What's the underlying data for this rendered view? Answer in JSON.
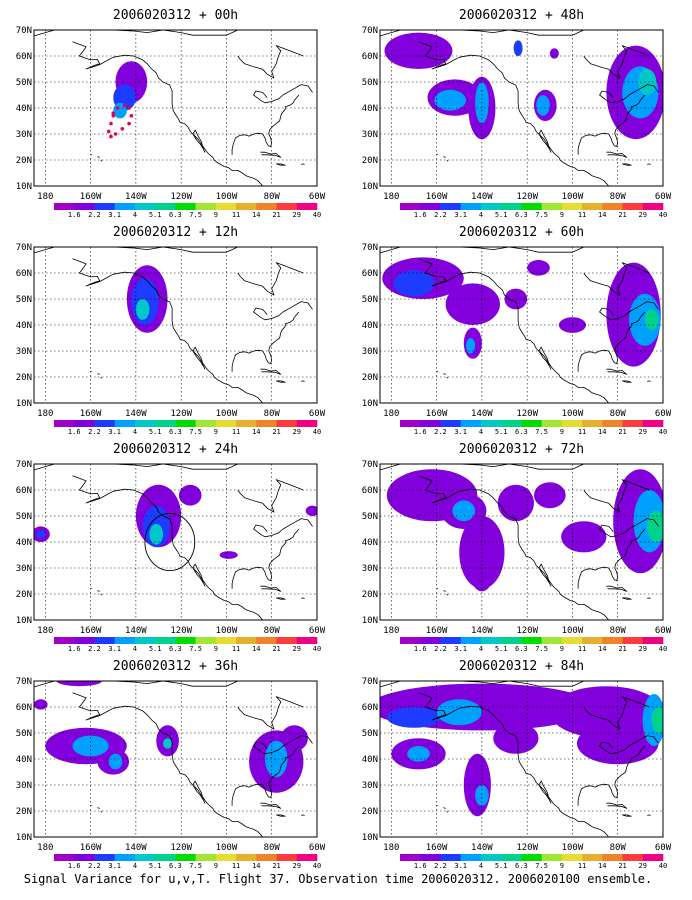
{
  "figure": {
    "caption": "Signal Variance for u,v,T. Flight 37. Observation time 2006020312. 2006020100 ensemble.",
    "map": {
      "lat_ticks": [
        10,
        20,
        30,
        40,
        50,
        60,
        70
      ],
      "lat_labels": [
        "10N",
        "20N",
        "30N",
        "40N",
        "50N",
        "60N",
        "70N"
      ],
      "lon_ticks": [
        180,
        160,
        140,
        120,
        100,
        80,
        60
      ],
      "lon_labels": [
        "180",
        "160W",
        "140W",
        "120W",
        "100W",
        "80W",
        "60W"
      ],
      "lon_range_west": [
        185,
        60
      ],
      "lat_range": [
        10,
        70
      ],
      "grid": "dotted"
    },
    "colorbar": {
      "labels": [
        "1.6",
        "2.2",
        "3.1",
        "4",
        "5.1",
        "6.3",
        "7.5",
        "9",
        "11",
        "14",
        "21",
        "29",
        "40"
      ],
      "colors": [
        "#a000c8",
        "#8200dc",
        "#1e3cff",
        "#00a0ff",
        "#00c8c8",
        "#00d28c",
        "#00dc00",
        "#a0e632",
        "#e6dc32",
        "#e6af2d",
        "#f08228",
        "#fa3c3c",
        "#f00082"
      ]
    },
    "panels": [
      {
        "title": "2006020312 + 00h",
        "blobs": [
          {
            "lon": 142,
            "lat": 50,
            "rlon": 7,
            "rlat": 8,
            "level": 1
          },
          {
            "lon": 145,
            "lat": 44,
            "rlon": 5,
            "rlat": 5,
            "level": 2
          },
          {
            "lon": 147,
            "lat": 39,
            "rlon": 3,
            "rlat": 3,
            "level": 3
          }
        ],
        "flight_track": [
          [
            150,
            38
          ],
          [
            148,
            40
          ],
          [
            145,
            41
          ],
          [
            143,
            40
          ],
          [
            142,
            37
          ],
          [
            143,
            34
          ],
          [
            146,
            32
          ],
          [
            149,
            30
          ],
          [
            151,
            29
          ],
          [
            152,
            31
          ],
          [
            151,
            34
          ],
          [
            150,
            37
          ]
        ]
      },
      {
        "title": "2006020312 + 48h",
        "blobs": [
          {
            "lon": 168,
            "lat": 62,
            "rlon": 15,
            "rlat": 7,
            "level": 1
          },
          {
            "lon": 152,
            "lat": 44,
            "rlon": 12,
            "rlat": 7,
            "level": 1
          },
          {
            "lon": 140,
            "lat": 40,
            "rlon": 6,
            "rlat": 12,
            "level": 1
          },
          {
            "lon": 140,
            "lat": 42,
            "rlon": 3,
            "rlat": 8,
            "level": 3
          },
          {
            "lon": 154,
            "lat": 43,
            "rlon": 7,
            "rlat": 4,
            "level": 3
          },
          {
            "lon": 112,
            "lat": 41,
            "rlon": 5,
            "rlat": 6,
            "level": 1
          },
          {
            "lon": 113,
            "lat": 41,
            "rlon": 3,
            "rlat": 4,
            "level": 3
          },
          {
            "lon": 124,
            "lat": 63,
            "rlon": 2,
            "rlat": 3,
            "level": 2
          },
          {
            "lon": 108,
            "lat": 61,
            "rlon": 2,
            "rlat": 2,
            "level": 1
          },
          {
            "lon": 72,
            "lat": 46,
            "rlon": 13,
            "rlat": 18,
            "level": 1
          },
          {
            "lon": 70,
            "lat": 46,
            "rlon": 8,
            "rlat": 10,
            "level": 3
          },
          {
            "lon": 67,
            "lat": 50,
            "rlon": 4,
            "rlat": 5,
            "level": 4
          }
        ]
      },
      {
        "title": "2006020312 + 12h",
        "blobs": [
          {
            "lon": 135,
            "lat": 50,
            "rlon": 9,
            "rlat": 13,
            "level": 1
          },
          {
            "lon": 136,
            "lat": 49,
            "rlon": 6,
            "rlat": 9,
            "level": 2
          },
          {
            "lon": 137,
            "lat": 46,
            "rlon": 3,
            "rlat": 4,
            "level": 4
          }
        ]
      },
      {
        "title": "2006020312 + 60h",
        "blobs": [
          {
            "lon": 166,
            "lat": 58,
            "rlon": 18,
            "rlat": 8,
            "level": 1
          },
          {
            "lon": 170,
            "lat": 56,
            "rlon": 9,
            "rlat": 5,
            "level": 2
          },
          {
            "lon": 144,
            "lat": 48,
            "rlon": 12,
            "rlat": 8,
            "level": 1
          },
          {
            "lon": 144,
            "lat": 33,
            "rlon": 4,
            "rlat": 6,
            "level": 1
          },
          {
            "lon": 145,
            "lat": 32,
            "rlon": 2,
            "rlat": 3,
            "level": 3
          },
          {
            "lon": 125,
            "lat": 50,
            "rlon": 5,
            "rlat": 4,
            "level": 1
          },
          {
            "lon": 115,
            "lat": 62,
            "rlon": 5,
            "rlat": 3,
            "level": 1
          },
          {
            "lon": 100,
            "lat": 40,
            "rlon": 6,
            "rlat": 3,
            "level": 1
          },
          {
            "lon": 73,
            "lat": 44,
            "rlon": 12,
            "rlat": 20,
            "level": 1
          },
          {
            "lon": 68,
            "lat": 42,
            "rlon": 7,
            "rlat": 10,
            "level": 3
          },
          {
            "lon": 65,
            "lat": 42,
            "rlon": 3,
            "rlat": 4,
            "level": 5
          }
        ]
      },
      {
        "title": "2006020312 + 24h",
        "blobs": [
          {
            "lon": 130,
            "lat": 50,
            "rlon": 10,
            "rlat": 12,
            "level": 1
          },
          {
            "lon": 131,
            "lat": 46,
            "rlon": 6,
            "rlat": 8,
            "level": 2
          },
          {
            "lon": 131,
            "lat": 43,
            "rlon": 3,
            "rlat": 4,
            "level": 4
          },
          {
            "lon": 116,
            "lat": 58,
            "rlon": 5,
            "rlat": 4,
            "level": 1
          },
          {
            "lon": 182,
            "lat": 43,
            "rlon": 4,
            "rlat": 3,
            "level": 1
          },
          {
            "lon": 182,
            "lat": 43,
            "rlon": 2,
            "rlat": 1.5,
            "level": 2
          },
          {
            "lon": 99,
            "lat": 35,
            "rlon": 4,
            "rlat": 1.5,
            "level": 1
          },
          {
            "lon": 62,
            "lat": 52,
            "rlon": 3,
            "rlat": 2,
            "level": 1
          }
        ],
        "obs_circle": {
          "lon": 125,
          "lat": 40,
          "rlon": 11,
          "rlat": 11
        }
      },
      {
        "title": "2006020312 + 72h",
        "blobs": [
          {
            "lon": 162,
            "lat": 58,
            "rlon": 20,
            "rlat": 10,
            "level": 1
          },
          {
            "lon": 148,
            "lat": 52,
            "rlon": 10,
            "rlat": 7,
            "level": 1
          },
          {
            "lon": 148,
            "lat": 52,
            "rlon": 5,
            "rlat": 4,
            "level": 3
          },
          {
            "lon": 140,
            "lat": 36,
            "rlon": 10,
            "rlat": 14,
            "level": 1
          },
          {
            "lon": 140,
            "lat": 28,
            "rlon": 5,
            "rlat": 7,
            "level": 1
          },
          {
            "lon": 125,
            "lat": 55,
            "rlon": 8,
            "rlat": 7,
            "level": 1
          },
          {
            "lon": 110,
            "lat": 58,
            "rlon": 7,
            "rlat": 5,
            "level": 1
          },
          {
            "lon": 95,
            "lat": 42,
            "rlon": 10,
            "rlat": 6,
            "level": 1
          },
          {
            "lon": 70,
            "lat": 48,
            "rlon": 12,
            "rlat": 20,
            "level": 1
          },
          {
            "lon": 66,
            "lat": 48,
            "rlon": 7,
            "rlat": 12,
            "level": 3
          },
          {
            "lon": 63,
            "lat": 46,
            "rlon": 4,
            "rlat": 6,
            "level": 5
          }
        ]
      },
      {
        "title": "2006020312 + 36h",
        "blobs": [
          {
            "lon": 182,
            "lat": 61,
            "rlon": 3,
            "rlat": 2,
            "level": 1
          },
          {
            "lon": 165,
            "lat": 70,
            "rlon": 10,
            "rlat": 2,
            "level": 1
          },
          {
            "lon": 162,
            "lat": 45,
            "rlon": 18,
            "rlat": 7,
            "level": 1
          },
          {
            "lon": 160,
            "lat": 45,
            "rlon": 8,
            "rlat": 4,
            "level": 3
          },
          {
            "lon": 150,
            "lat": 39,
            "rlon": 7,
            "rlat": 5,
            "level": 1
          },
          {
            "lon": 149,
            "lat": 39,
            "rlon": 3,
            "rlat": 3,
            "level": 3
          },
          {
            "lon": 126,
            "lat": 47,
            "rlon": 5,
            "rlat": 6,
            "level": 1
          },
          {
            "lon": 126,
            "lat": 46,
            "rlon": 2,
            "rlat": 2,
            "level": 4
          },
          {
            "lon": 78,
            "lat": 39,
            "rlon": 12,
            "rlat": 12,
            "level": 1
          },
          {
            "lon": 78,
            "lat": 40,
            "rlon": 5,
            "rlat": 7,
            "level": 3
          },
          {
            "lon": 70,
            "lat": 48,
            "rlon": 6,
            "rlat": 5,
            "level": 1
          }
        ]
      },
      {
        "title": "2006020312 + 84h",
        "blobs": [
          {
            "lon": 140,
            "lat": 60,
            "rlon": 50,
            "rlat": 9,
            "level": 1
          },
          {
            "lon": 170,
            "lat": 56,
            "rlon": 12,
            "rlat": 4,
            "level": 2
          },
          {
            "lon": 150,
            "lat": 58,
            "rlon": 10,
            "rlat": 5,
            "level": 3
          },
          {
            "lon": 168,
            "lat": 42,
            "rlon": 12,
            "rlat": 6,
            "level": 1
          },
          {
            "lon": 168,
            "lat": 42,
            "rlon": 5,
            "rlat": 3,
            "level": 3
          },
          {
            "lon": 142,
            "lat": 30,
            "rlon": 6,
            "rlat": 12,
            "level": 1
          },
          {
            "lon": 140,
            "lat": 26,
            "rlon": 3,
            "rlat": 4,
            "level": 3
          },
          {
            "lon": 125,
            "lat": 48,
            "rlon": 10,
            "rlat": 6,
            "level": 1
          },
          {
            "lon": 85,
            "lat": 58,
            "rlon": 25,
            "rlat": 10,
            "level": 1
          },
          {
            "lon": 80,
            "lat": 46,
            "rlon": 18,
            "rlat": 8,
            "level": 1
          },
          {
            "lon": 64,
            "lat": 55,
            "rlon": 5,
            "rlat": 10,
            "level": 3
          },
          {
            "lon": 62,
            "lat": 55,
            "rlon": 3,
            "rlat": 5,
            "level": 5
          }
        ]
      }
    ]
  }
}
